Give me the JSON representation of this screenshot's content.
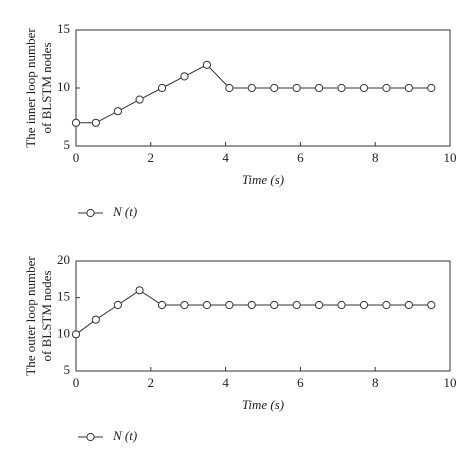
{
  "chart_data": [
    {
      "type": "line",
      "ylabel": [
        "The inner loop number",
        "of BLSTM nodes"
      ],
      "xlabel": "Time (s)",
      "x": [
        0,
        0.53,
        1.12,
        1.7,
        2.3,
        2.9,
        3.5,
        4.1,
        4.7,
        5.3,
        5.9,
        6.5,
        7.1,
        7.7,
        8.3,
        8.9,
        9.5
      ],
      "series": [
        {
          "name": "N (t)",
          "color": "#333333",
          "values": [
            7,
            7,
            8,
            9,
            10,
            11,
            12,
            10,
            10,
            10,
            10,
            10,
            10,
            10,
            10,
            10,
            10
          ]
        }
      ],
      "xlim": [
        0,
        10
      ],
      "xticks": [
        0,
        2,
        4,
        6,
        8,
        10
      ],
      "ylim": [
        5,
        15
      ],
      "yticks": [
        5,
        10,
        15
      ]
    },
    {
      "type": "line",
      "ylabel": [
        "The outer loop number",
        "of BLSTM nodes"
      ],
      "xlabel": "Time (s)",
      "x": [
        0,
        0.53,
        1.12,
        1.7,
        2.3,
        2.9,
        3.5,
        4.1,
        4.7,
        5.3,
        5.9,
        6.5,
        7.1,
        7.7,
        8.3,
        8.9,
        9.5
      ],
      "series": [
        {
          "name": "N (t)",
          "color": "#333333",
          "values": [
            10,
            12,
            14,
            16,
            14,
            14,
            14,
            14,
            14,
            14,
            14,
            14,
            14,
            14,
            14,
            14,
            14
          ]
        }
      ],
      "xlim": [
        0,
        10
      ],
      "xticks": [
        0,
        2,
        4,
        6,
        8,
        10
      ],
      "ylim": [
        5,
        20
      ],
      "yticks": [
        5,
        10,
        15,
        20
      ]
    }
  ]
}
